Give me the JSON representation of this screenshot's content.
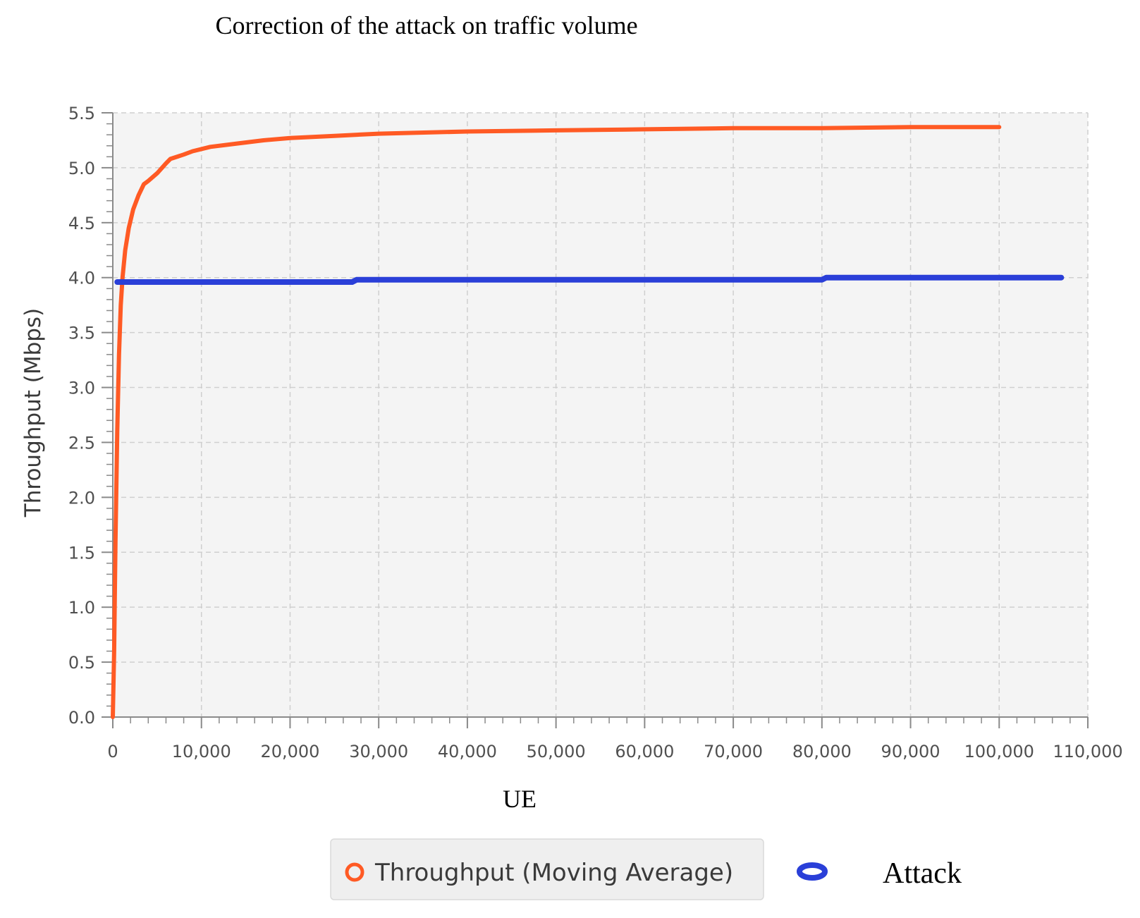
{
  "chart_data": {
    "type": "line",
    "title": "Correction of the attack on traffic volume",
    "xlabel": "UE",
    "ylabel": "Throughput (Mbps)",
    "xlim": [
      0,
      110000
    ],
    "ylim": [
      0,
      5.5
    ],
    "x_ticks": [
      "0",
      "10,000",
      "20,000",
      "30,000",
      "40,000",
      "50,000",
      "60,000",
      "70,000",
      "80,000",
      "90,000",
      "100,000",
      "110,000"
    ],
    "y_ticks": [
      "0.0",
      "0.5",
      "1.0",
      "1.5",
      "2.0",
      "2.5",
      "3.0",
      "3.5",
      "4.0",
      "4.5",
      "5.0",
      "5.5"
    ],
    "grid": true,
    "legend_placement": "bottom",
    "series": [
      {
        "name": "Throughput  (Moving Average)",
        "color": "#ff5a24",
        "marker": "open-circle",
        "points": [
          [
            0,
            0.0
          ],
          [
            150,
            0.6
          ],
          [
            300,
            1.6
          ],
          [
            500,
            2.6
          ],
          [
            700,
            3.3
          ],
          [
            900,
            3.75
          ],
          [
            1100,
            4.0
          ],
          [
            1400,
            4.25
          ],
          [
            1800,
            4.45
          ],
          [
            2300,
            4.62
          ],
          [
            2900,
            4.75
          ],
          [
            3500,
            4.85
          ],
          [
            4000,
            4.88
          ],
          [
            5000,
            4.95
          ],
          [
            6000,
            5.04
          ],
          [
            6500,
            5.08
          ],
          [
            8000,
            5.12
          ],
          [
            9000,
            5.15
          ],
          [
            11000,
            5.19
          ],
          [
            14000,
            5.22
          ],
          [
            17000,
            5.25
          ],
          [
            20000,
            5.27
          ],
          [
            25000,
            5.29
          ],
          [
            30000,
            5.31
          ],
          [
            40000,
            5.33
          ],
          [
            50000,
            5.34
          ],
          [
            60000,
            5.35
          ],
          [
            70000,
            5.36
          ],
          [
            80000,
            5.36
          ],
          [
            90000,
            5.37
          ],
          [
            100000,
            5.37
          ]
        ]
      },
      {
        "name": "Attack",
        "color": "#2a3fd8",
        "marker": "filled-ellipse",
        "points": [
          [
            500,
            3.96
          ],
          [
            27000,
            3.96
          ],
          [
            27500,
            3.98
          ],
          [
            80000,
            3.98
          ],
          [
            80500,
            4.0
          ],
          [
            107000,
            4.0
          ]
        ]
      }
    ]
  }
}
